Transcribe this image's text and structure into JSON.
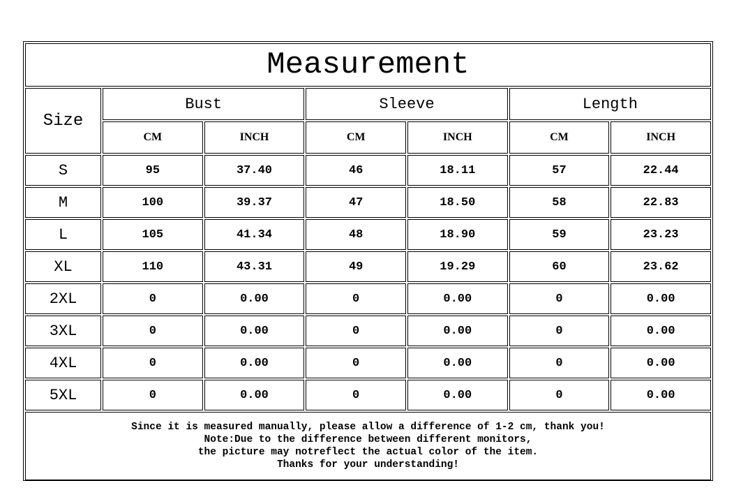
{
  "title": "Measurement",
  "size_header": "Size",
  "groups": [
    "Bust",
    "Sleeve",
    "Length"
  ],
  "units": [
    "CM",
    "INCH",
    "CM",
    "INCH",
    "CM",
    "INCH"
  ],
  "rows": [
    {
      "size": "S",
      "values": [
        "95",
        "37.40",
        "46",
        "18.11",
        "57",
        "22.44"
      ]
    },
    {
      "size": "M",
      "values": [
        "100",
        "39.37",
        "47",
        "18.50",
        "58",
        "22.83"
      ]
    },
    {
      "size": "L",
      "values": [
        "105",
        "41.34",
        "48",
        "18.90",
        "59",
        "23.23"
      ]
    },
    {
      "size": "XL",
      "values": [
        "110",
        "43.31",
        "49",
        "19.29",
        "60",
        "23.62"
      ]
    },
    {
      "size": "2XL",
      "values": [
        "0",
        "0.00",
        "0",
        "0.00",
        "0",
        "0.00"
      ]
    },
    {
      "size": "3XL",
      "values": [
        "0",
        "0.00",
        "0",
        "0.00",
        "0",
        "0.00"
      ]
    },
    {
      "size": "4XL",
      "values": [
        "0",
        "0.00",
        "0",
        "0.00",
        "0",
        "0.00"
      ]
    },
    {
      "size": "5XL",
      "values": [
        "0",
        "0.00",
        "0",
        "0.00",
        "0",
        "0.00"
      ]
    }
  ],
  "notes": [
    "Since it is measured manually, please allow a difference of 1-2 cm, thank you!",
    "Note:Due to the difference between different monitors,",
    "the picture may notreflect the actual color of the item.",
    "Thanks for your understanding!"
  ]
}
